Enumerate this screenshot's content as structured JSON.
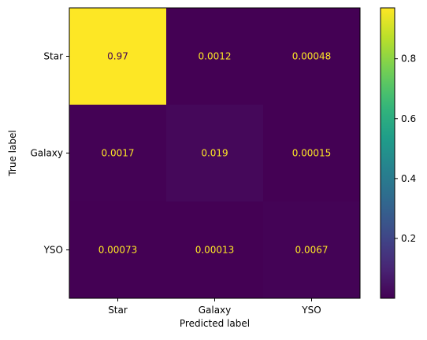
{
  "chart_data": {
    "type": "heatmap",
    "title": "",
    "xlabel": "Predicted label",
    "ylabel": "True label",
    "x_categories": [
      "Star",
      "Galaxy",
      "YSO"
    ],
    "y_categories": [
      "Star",
      "Galaxy",
      "YSO"
    ],
    "values": [
      [
        0.97,
        0.0012,
        0.00048
      ],
      [
        0.0017,
        0.019,
        0.00015
      ],
      [
        0.00073,
        0.00013,
        0.0067
      ]
    ],
    "value_labels": [
      [
        "0.97",
        "0.0012",
        "0.00048"
      ],
      [
        "0.0017",
        "0.019",
        "0.00015"
      ],
      [
        "0.00073",
        "0.00013",
        "0.0067"
      ]
    ],
    "colormap": "viridis",
    "colorbar": {
      "range": [
        0.00013,
        0.97
      ],
      "ticks": [
        0.2,
        0.4,
        0.6,
        0.8
      ],
      "tick_labels": [
        "0.2",
        "0.4",
        "0.6",
        "0.8"
      ]
    },
    "grid": false,
    "colors": {
      "low": "#440154",
      "high": "#fde725",
      "text_on_dark": "#fde725",
      "text_on_light": "#440154"
    }
  }
}
